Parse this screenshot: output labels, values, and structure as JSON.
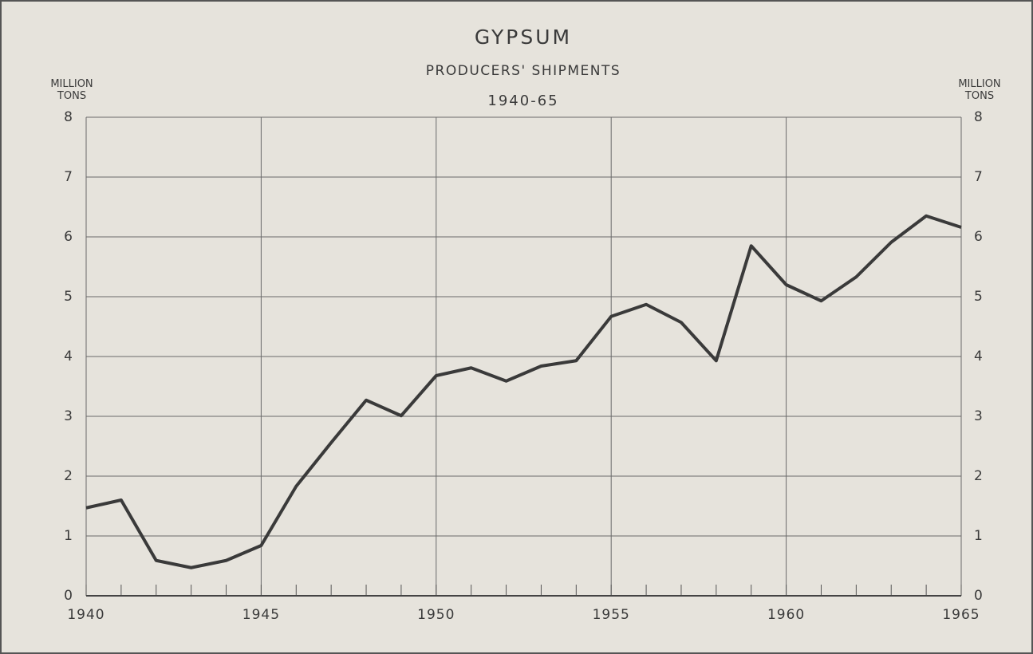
{
  "chart_data": {
    "type": "line",
    "title": "GYPSUM",
    "subtitle": "PRODUCERS' SHIPMENTS",
    "period": "1940-65",
    "ylabel": "MILLION TONS",
    "y2label": "MILLION TONS",
    "x": [
      1940,
      1941,
      1942,
      1943,
      1944,
      1945,
      1946,
      1947,
      1948,
      1949,
      1950,
      1951,
      1952,
      1953,
      1954,
      1955,
      1956,
      1957,
      1958,
      1959,
      1960,
      1961,
      1962,
      1963,
      1964,
      1965
    ],
    "series": [
      {
        "name": "Producers' shipments",
        "color": "#3a3a3a",
        "values": [
          1.47,
          1.6,
          0.59,
          0.47,
          0.59,
          0.84,
          1.83,
          2.56,
          3.27,
          3.01,
          3.68,
          3.81,
          3.59,
          3.84,
          3.93,
          4.67,
          4.87,
          4.57,
          3.93,
          5.85,
          5.2,
          4.93,
          5.33,
          5.91,
          6.35,
          6.16
        ]
      }
    ],
    "xlim": [
      1940,
      1965
    ],
    "xticks": [
      1940,
      1945,
      1950,
      1955,
      1960,
      1965
    ],
    "ylim": [
      0,
      8
    ],
    "yticks": [
      0,
      1,
      2,
      3,
      4,
      5,
      6,
      7,
      8
    ],
    "y2lim": [
      0,
      8
    ],
    "y2ticks": [
      0,
      1,
      2,
      3,
      4,
      5,
      6,
      7,
      8
    ],
    "grid": true
  }
}
